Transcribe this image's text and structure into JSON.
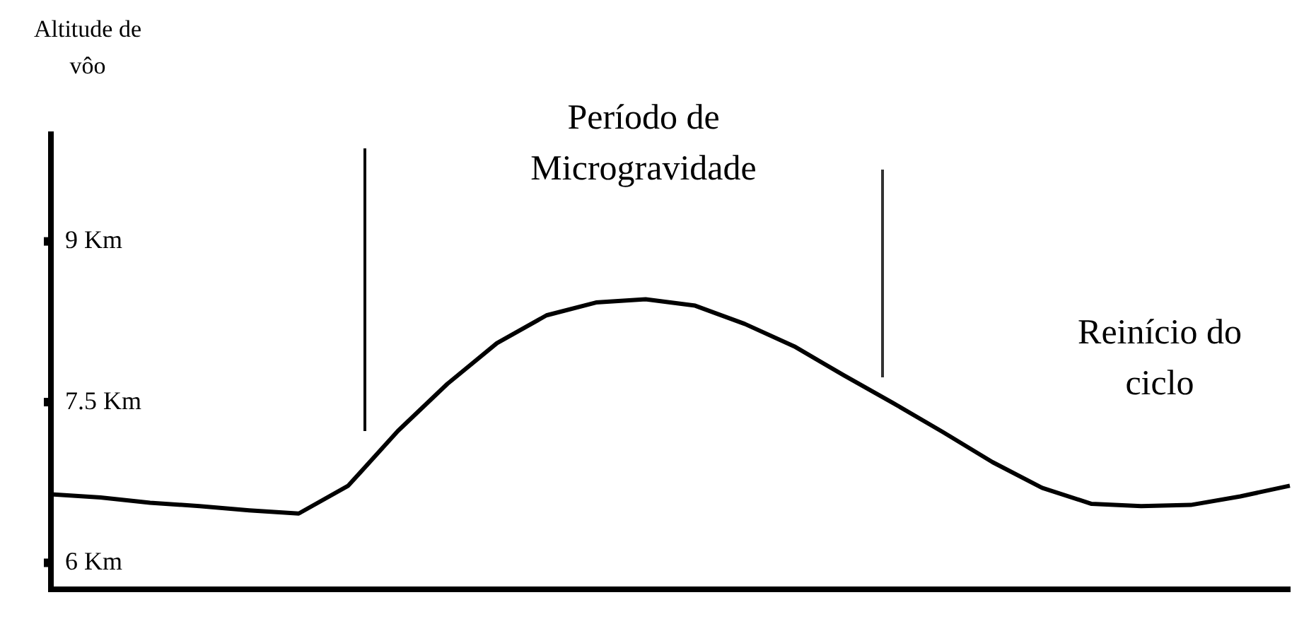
{
  "chart_data": {
    "type": "line",
    "ylabel": "Altitude de vôo",
    "categories": [
      null,
      null,
      null,
      null,
      null,
      null,
      null,
      null,
      null,
      null,
      null,
      null,
      null,
      null,
      null,
      null,
      null,
      null,
      null,
      null,
      null,
      null,
      null,
      null,
      null,
      null
    ],
    "series": [
      {
        "color": "#000000",
        "values": [
          6.64,
          6.61,
          6.56,
          6.53,
          6.49,
          6.46,
          6.72,
          7.23,
          7.67,
          8.05,
          8.31,
          8.43,
          8.46,
          8.4,
          8.23,
          8.02,
          7.75,
          7.49,
          7.22,
          6.94,
          6.7,
          6.55,
          6.53,
          6.54,
          6.62,
          6.72
        ]
      }
    ],
    "ylim": [
      5.75,
      10
    ],
    "yticks": [
      {
        "value": 6,
        "label": "6 Km"
      },
      {
        "value": 7.5,
        "label": "7.5 Km"
      },
      {
        "value": 9,
        "label": "9 Km"
      }
    ],
    "tick_labels": "y",
    "marker": "none",
    "line_style": "solid",
    "annotations": [
      "Período de Microgravidade",
      "Reinício do ciclo"
    ]
  }
}
